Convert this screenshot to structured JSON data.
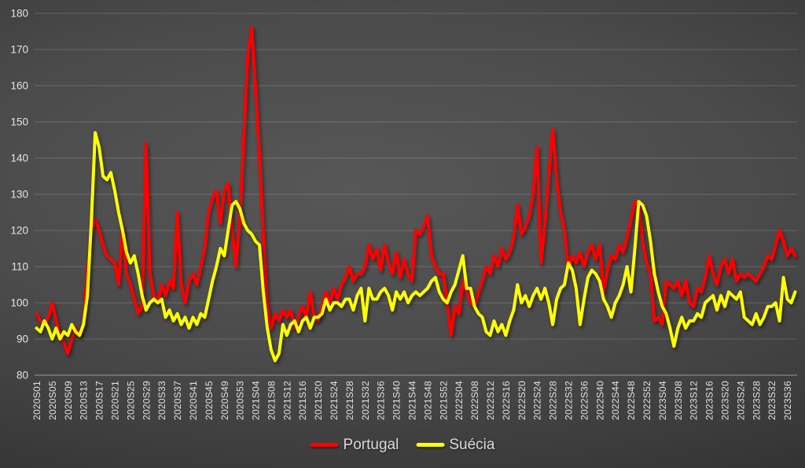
{
  "chart_data": {
    "type": "line",
    "title": "",
    "xlabel": "",
    "ylabel": "",
    "ylim": [
      80,
      180
    ],
    "y_ticks": [
      80,
      90,
      100,
      110,
      120,
      130,
      140,
      150,
      160,
      170,
      180
    ],
    "grid": true,
    "legend_position": "bottom-center",
    "tick_step": 4,
    "x_tick_labels": [
      "2020S01",
      "2020S05",
      "2020S09",
      "2020S13",
      "2020S17",
      "2020S21",
      "2020S25",
      "2020S29",
      "2020S33",
      "2020S37",
      "2020S41",
      "2020S45",
      "2020S49",
      "2020S53",
      "2021S04",
      "2021S08",
      "2021S12",
      "2021S16",
      "2021S20",
      "2021S24",
      "2021S28",
      "2021S32",
      "2021S36",
      "2021S40",
      "2021S44",
      "2021S48",
      "2021S52",
      "2022S04",
      "2022S08",
      "2022S12",
      "2022S16",
      "2022S20",
      "2022S24",
      "2022S28",
      "2022S32",
      "2022S36",
      "2022S40",
      "2022S44",
      "2022S48",
      "2022S52",
      "2023S04",
      "2023S08",
      "2023S12",
      "2023S16",
      "2023S20",
      "2023S24",
      "2023S28",
      "2023S32",
      "2023S36"
    ],
    "series": [
      {
        "name": "Portugal",
        "color": "#ff0000",
        "values": [
          97,
          95,
          94,
          96,
          100,
          95,
          91,
          89,
          86,
          90,
          93,
          91,
          94,
          109,
          120,
          123,
          120,
          116,
          113,
          112,
          111,
          105,
          121,
          108,
          105,
          101,
          97,
          99,
          144,
          108,
          102,
          100,
          105,
          102,
          106,
          104,
          125,
          105,
          100,
          106,
          108,
          105,
          110,
          115,
          125,
          129,
          131,
          122,
          131,
          133,
          120,
          110,
          124,
          145,
          168,
          176,
          159,
          141,
          118,
          99,
          93,
          97,
          95,
          98,
          96,
          98,
          93,
          96,
          99,
          96,
          103,
          96,
          95,
          99,
          103,
          100,
          104,
          101,
          105,
          107,
          110,
          106,
          108,
          108,
          110,
          116,
          112,
          115,
          109,
          116,
          111,
          108,
          114,
          107,
          112,
          108,
          106,
          120,
          119,
          121,
          124,
          113,
          110,
          108,
          108,
          100,
          91,
          99,
          97,
          106,
          103,
          100,
          99,
          103,
          106,
          110,
          108,
          113,
          110,
          115,
          112,
          114,
          118,
          127,
          119,
          121,
          124,
          130,
          143,
          111,
          122,
          135,
          148,
          134,
          125,
          120,
          109,
          113,
          111,
          114,
          110,
          114,
          116,
          112,
          116,
          103,
          109,
          113,
          112,
          116,
          114,
          118,
          123,
          128,
          127,
          117,
          111,
          108,
          95,
          96,
          94,
          106,
          105,
          104,
          106,
          102,
          106,
          100,
          99,
          104,
          103,
          107,
          113,
          108,
          105,
          110,
          112,
          108,
          112,
          106,
          108,
          107,
          108,
          107,
          106,
          108,
          110,
          113,
          112,
          116,
          120,
          117,
          113,
          115,
          113
        ]
      },
      {
        "name": "Suécia",
        "color": "#ffff00",
        "values": [
          93,
          92,
          95,
          93,
          90,
          93,
          90,
          92,
          91,
          94,
          92,
          91,
          94,
          102,
          122,
          147,
          143,
          135,
          134,
          136,
          131,
          125,
          120,
          114,
          111,
          113,
          108,
          102,
          98,
          100,
          101,
          100,
          101,
          96,
          98,
          95,
          97,
          94,
          96,
          93,
          96,
          94,
          97,
          96,
          101,
          106,
          110,
          115,
          113,
          120,
          127,
          128,
          126,
          122,
          120,
          119,
          117,
          116,
          103,
          93,
          87,
          84,
          86,
          94,
          91,
          94,
          95,
          92,
          95,
          96,
          93,
          96,
          96,
          97,
          101,
          98,
          100,
          100,
          99,
          101,
          101,
          98,
          102,
          104,
          95,
          104,
          101,
          101,
          103,
          104,
          102,
          98,
          103,
          101,
          103,
          100,
          102,
          103,
          102,
          103,
          104,
          106,
          107,
          103,
          101,
          100,
          103,
          105,
          109,
          113,
          104,
          104,
          99,
          97,
          96,
          92,
          91,
          95,
          92,
          94,
          91,
          95,
          98,
          105,
          100,
          102,
          99,
          102,
          104,
          101,
          104,
          100,
          94,
          101,
          104,
          105,
          111,
          109,
          104,
          94,
          101,
          107,
          109,
          108,
          106,
          101,
          99,
          96,
          100,
          102,
          105,
          110,
          103,
          115,
          128,
          127,
          124,
          117,
          108,
          103,
          99,
          97,
          93,
          88,
          93,
          96,
          93,
          95,
          95,
          97,
          96,
          100,
          101,
          102,
          98,
          102,
          99,
          103,
          102,
          101,
          103,
          96,
          95,
          94,
          97,
          94,
          96,
          99,
          99,
          100,
          95,
          107,
          101,
          100,
          103
        ]
      }
    ]
  },
  "legend": {
    "portugal_label": "Portugal",
    "suecia_label": "Suécia"
  }
}
